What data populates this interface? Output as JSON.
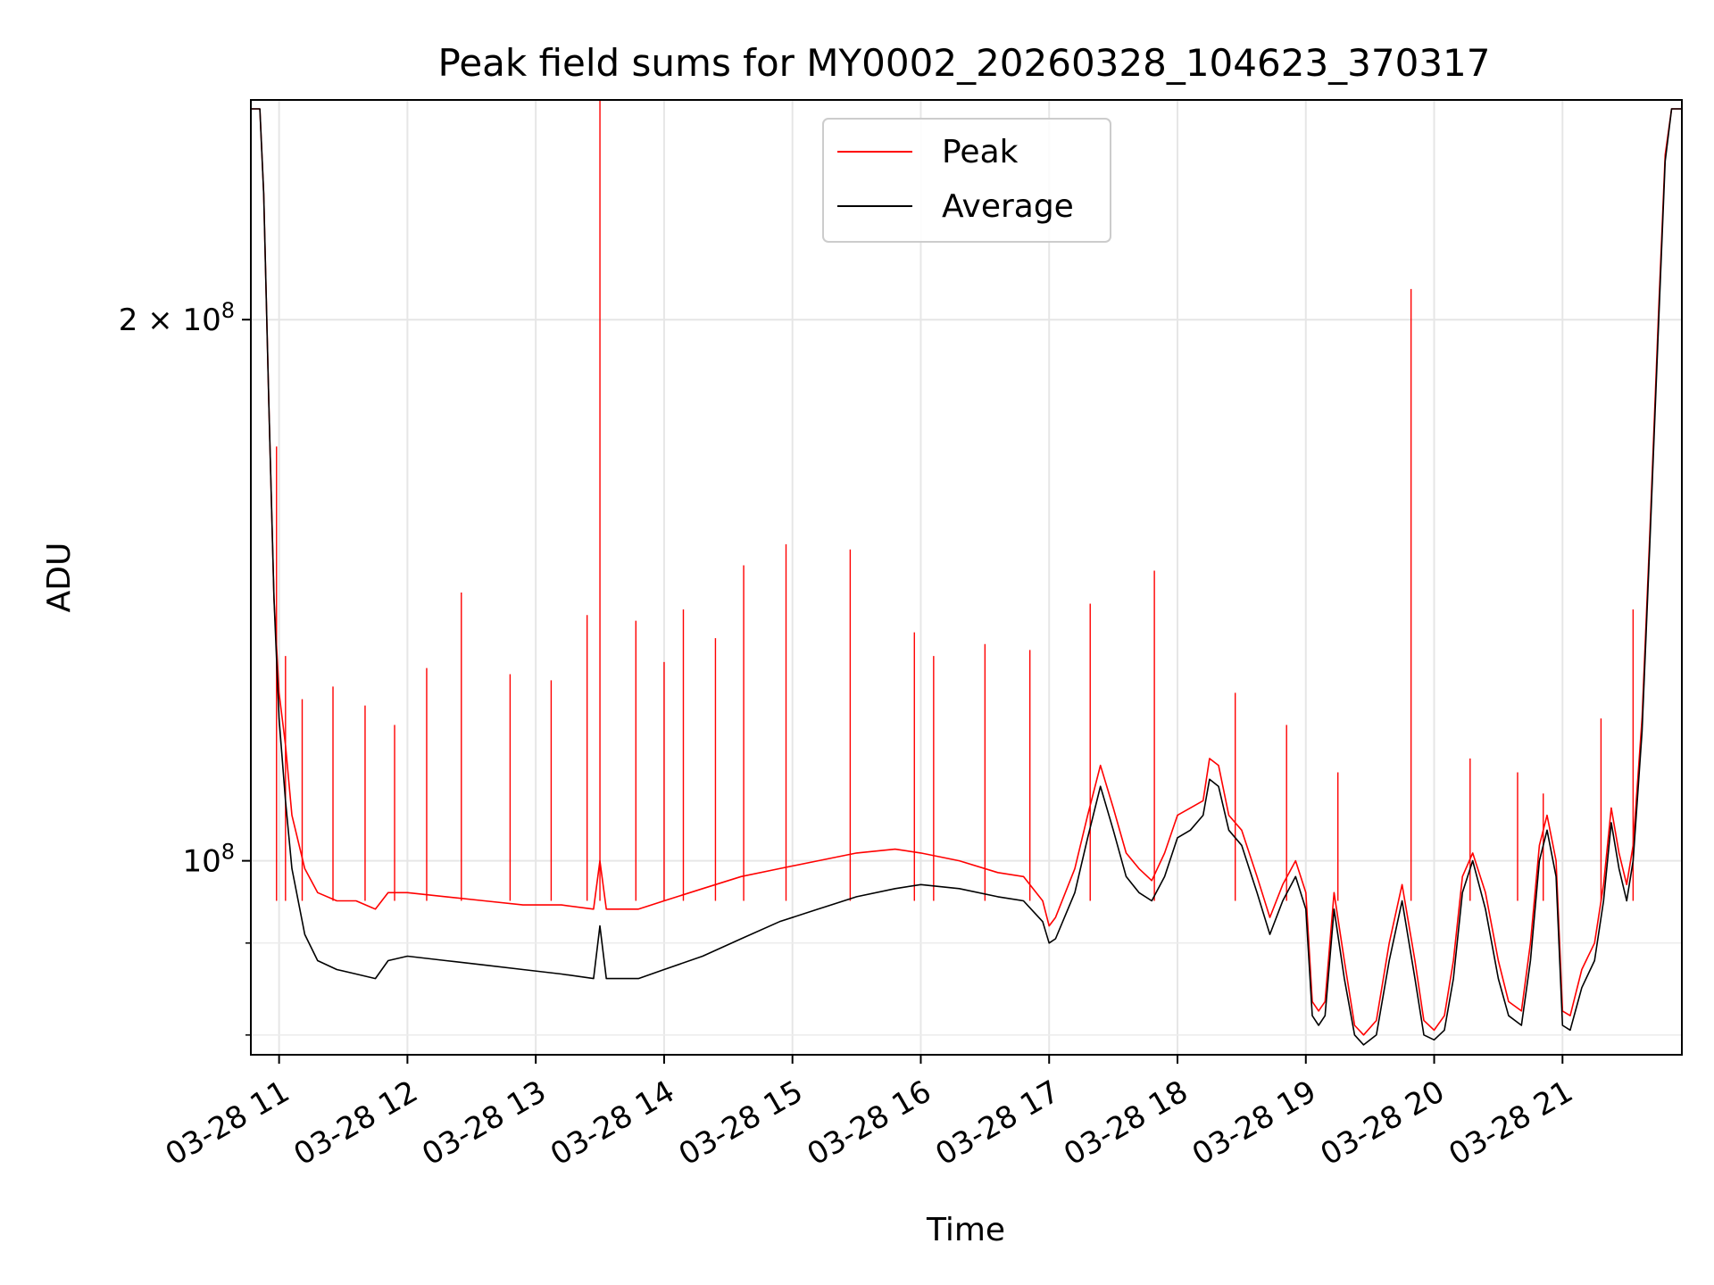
{
  "chart_data": {
    "type": "line",
    "title": "Peak field sums for MY0002_20260328_104623_370317",
    "xlabel": "Time",
    "ylabel": "ADU",
    "x_unit": "hour of 2026-03-28",
    "xlim": [
      10.78,
      21.93
    ],
    "ylim": [
      78000000,
      265000000
    ],
    "y_scale": "log",
    "grid": true,
    "legend": {
      "placement": "upper center"
    },
    "x_ticks": [
      {
        "x": 11,
        "label": "03-28 11"
      },
      {
        "x": 12,
        "label": "03-28 12"
      },
      {
        "x": 13,
        "label": "03-28 13"
      },
      {
        "x": 14,
        "label": "03-28 14"
      },
      {
        "x": 15,
        "label": "03-28 15"
      },
      {
        "x": 16,
        "label": "03-28 16"
      },
      {
        "x": 17,
        "label": "03-28 17"
      },
      {
        "x": 18,
        "label": "03-28 18"
      },
      {
        "x": 19,
        "label": "03-28 19"
      },
      {
        "x": 20,
        "label": "03-28 20"
      },
      {
        "x": 21,
        "label": "03-28 21"
      }
    ],
    "y_ticks_major": [
      {
        "y": 100000000,
        "base": "10",
        "exp": "8",
        "coef": ""
      },
      {
        "y": 200000000,
        "base": "10",
        "exp": "8",
        "coef": "2 × "
      }
    ],
    "y_ticks_minor": [
      80000000,
      90000000
    ],
    "series": [
      {
        "name": "Average",
        "color": "#000000",
        "points": [
          [
            10.78,
            262000000
          ],
          [
            10.85,
            262000000
          ],
          [
            10.88,
            235000000
          ],
          [
            10.92,
            180000000
          ],
          [
            10.96,
            140000000
          ],
          [
            11.0,
            120000000
          ],
          [
            11.05,
            108000000
          ],
          [
            11.1,
            99000000
          ],
          [
            11.2,
            91000000
          ],
          [
            11.3,
            88000000
          ],
          [
            11.45,
            87000000
          ],
          [
            11.6,
            86500000
          ],
          [
            11.75,
            86000000
          ],
          [
            11.85,
            88000000
          ],
          [
            12.0,
            88500000
          ],
          [
            12.3,
            88000000
          ],
          [
            12.6,
            87500000
          ],
          [
            12.9,
            87000000
          ],
          [
            13.2,
            86500000
          ],
          [
            13.45,
            86000000
          ],
          [
            13.5,
            92000000
          ],
          [
            13.55,
            86000000
          ],
          [
            13.8,
            86000000
          ],
          [
            14.0,
            87000000
          ],
          [
            14.3,
            88500000
          ],
          [
            14.6,
            90500000
          ],
          [
            14.9,
            92500000
          ],
          [
            15.2,
            94000000
          ],
          [
            15.5,
            95500000
          ],
          [
            15.8,
            96500000
          ],
          [
            16.0,
            97000000
          ],
          [
            16.3,
            96500000
          ],
          [
            16.6,
            95500000
          ],
          [
            16.8,
            95000000
          ],
          [
            16.95,
            92500000
          ],
          [
            17.0,
            90000000
          ],
          [
            17.05,
            90500000
          ],
          [
            17.2,
            96000000
          ],
          [
            17.3,
            103000000
          ],
          [
            17.4,
            110000000
          ],
          [
            17.5,
            104000000
          ],
          [
            17.6,
            98000000
          ],
          [
            17.7,
            96000000
          ],
          [
            17.8,
            95000000
          ],
          [
            17.9,
            98000000
          ],
          [
            18.0,
            103000000
          ],
          [
            18.1,
            104000000
          ],
          [
            18.2,
            106000000
          ],
          [
            18.25,
            111000000
          ],
          [
            18.32,
            110000000
          ],
          [
            18.4,
            104000000
          ],
          [
            18.5,
            102000000
          ],
          [
            18.62,
            96000000
          ],
          [
            18.72,
            91000000
          ],
          [
            18.82,
            95000000
          ],
          [
            18.92,
            98000000
          ],
          [
            19.0,
            94000000
          ],
          [
            19.05,
            82000000
          ],
          [
            19.1,
            81000000
          ],
          [
            19.15,
            82000000
          ],
          [
            19.22,
            94000000
          ],
          [
            19.3,
            86000000
          ],
          [
            19.38,
            80000000
          ],
          [
            19.45,
            79000000
          ],
          [
            19.55,
            80000000
          ],
          [
            19.65,
            88000000
          ],
          [
            19.75,
            95000000
          ],
          [
            19.85,
            86000000
          ],
          [
            19.92,
            80000000
          ],
          [
            20.0,
            79500000
          ],
          [
            20.08,
            80500000
          ],
          [
            20.15,
            86000000
          ],
          [
            20.22,
            96000000
          ],
          [
            20.3,
            100000000
          ],
          [
            20.4,
            94000000
          ],
          [
            20.5,
            86000000
          ],
          [
            20.58,
            82000000
          ],
          [
            20.68,
            81000000
          ],
          [
            20.75,
            88000000
          ],
          [
            20.82,
            100000000
          ],
          [
            20.88,
            104000000
          ],
          [
            20.95,
            98000000
          ],
          [
            21.0,
            81000000
          ],
          [
            21.06,
            80500000
          ],
          [
            21.15,
            85000000
          ],
          [
            21.25,
            88000000
          ],
          [
            21.32,
            95000000
          ],
          [
            21.38,
            105000000
          ],
          [
            21.44,
            99000000
          ],
          [
            21.5,
            95000000
          ],
          [
            21.55,
            100000000
          ],
          [
            21.62,
            118000000
          ],
          [
            21.68,
            150000000
          ],
          [
            21.75,
            200000000
          ],
          [
            21.8,
            245000000
          ],
          [
            21.85,
            262000000
          ],
          [
            21.93,
            262000000
          ]
        ]
      },
      {
        "name": "Peak",
        "color": "#ff0000",
        "points": [
          [
            10.78,
            262000000
          ],
          [
            10.85,
            262000000
          ],
          [
            10.88,
            235000000
          ],
          [
            10.92,
            180000000
          ],
          [
            10.96,
            140000000
          ],
          [
            11.0,
            124000000
          ],
          [
            11.05,
            116000000
          ],
          [
            11.1,
            106000000
          ],
          [
            11.2,
            99000000
          ],
          [
            11.3,
            96000000
          ],
          [
            11.45,
            95000000
          ],
          [
            11.6,
            95000000
          ],
          [
            11.75,
            94000000
          ],
          [
            11.85,
            96000000
          ],
          [
            12.0,
            96000000
          ],
          [
            12.3,
            95500000
          ],
          [
            12.6,
            95000000
          ],
          [
            12.9,
            94500000
          ],
          [
            13.2,
            94500000
          ],
          [
            13.45,
            94000000
          ],
          [
            13.5,
            100000000
          ],
          [
            13.55,
            94000000
          ],
          [
            13.8,
            94000000
          ],
          [
            14.0,
            95000000
          ],
          [
            14.3,
            96500000
          ],
          [
            14.6,
            98000000
          ],
          [
            14.9,
            99000000
          ],
          [
            15.2,
            100000000
          ],
          [
            15.5,
            101000000
          ],
          [
            15.8,
            101500000
          ],
          [
            16.0,
            101000000
          ],
          [
            16.3,
            100000000
          ],
          [
            16.6,
            98500000
          ],
          [
            16.8,
            98000000
          ],
          [
            16.95,
            95000000
          ],
          [
            17.0,
            92000000
          ],
          [
            17.05,
            93000000
          ],
          [
            17.2,
            99000000
          ],
          [
            17.3,
            106000000
          ],
          [
            17.4,
            113000000
          ],
          [
            17.5,
            107000000
          ],
          [
            17.6,
            101000000
          ],
          [
            17.7,
            99000000
          ],
          [
            17.8,
            97500000
          ],
          [
            17.9,
            101000000
          ],
          [
            18.0,
            106000000
          ],
          [
            18.1,
            107000000
          ],
          [
            18.2,
            108000000
          ],
          [
            18.25,
            114000000
          ],
          [
            18.32,
            113000000
          ],
          [
            18.4,
            106000000
          ],
          [
            18.5,
            104000000
          ],
          [
            18.62,
            98000000
          ],
          [
            18.72,
            93000000
          ],
          [
            18.82,
            97000000
          ],
          [
            18.92,
            100000000
          ],
          [
            19.0,
            96000000
          ],
          [
            19.05,
            83500000
          ],
          [
            19.1,
            82500000
          ],
          [
            19.15,
            83500000
          ],
          [
            19.22,
            96000000
          ],
          [
            19.3,
            88000000
          ],
          [
            19.38,
            81000000
          ],
          [
            19.45,
            80000000
          ],
          [
            19.55,
            81500000
          ],
          [
            19.65,
            90000000
          ],
          [
            19.75,
            97000000
          ],
          [
            19.85,
            88000000
          ],
          [
            19.92,
            81500000
          ],
          [
            20.0,
            80500000
          ],
          [
            20.08,
            82000000
          ],
          [
            20.15,
            88000000
          ],
          [
            20.22,
            98000000
          ],
          [
            20.3,
            101000000
          ],
          [
            20.4,
            96000000
          ],
          [
            20.5,
            88000000
          ],
          [
            20.58,
            83500000
          ],
          [
            20.68,
            82500000
          ],
          [
            20.75,
            90000000
          ],
          [
            20.82,
            102000000
          ],
          [
            20.88,
            106000000
          ],
          [
            20.95,
            100000000
          ],
          [
            21.0,
            82500000
          ],
          [
            21.06,
            82000000
          ],
          [
            21.15,
            87000000
          ],
          [
            21.25,
            90000000
          ],
          [
            21.32,
            97000000
          ],
          [
            21.38,
            107000000
          ],
          [
            21.44,
            101000000
          ],
          [
            21.5,
            97000000
          ],
          [
            21.55,
            102000000
          ],
          [
            21.62,
            120000000
          ],
          [
            21.68,
            152000000
          ],
          [
            21.75,
            203000000
          ],
          [
            21.8,
            247000000
          ],
          [
            21.85,
            262000000
          ],
          [
            21.93,
            262000000
          ]
        ],
        "spikes": [
          [
            10.98,
            170000000
          ],
          [
            11.05,
            130000000
          ],
          [
            11.18,
            123000000
          ],
          [
            11.42,
            125000000
          ],
          [
            11.67,
            122000000
          ],
          [
            11.9,
            119000000
          ],
          [
            12.15,
            128000000
          ],
          [
            12.42,
            141000000
          ],
          [
            12.8,
            127000000
          ],
          [
            13.12,
            126000000
          ],
          [
            13.4,
            137000000
          ],
          [
            13.5,
            270000000
          ],
          [
            13.78,
            136000000
          ],
          [
            14.0,
            129000000
          ],
          [
            14.15,
            138000000
          ],
          [
            14.4,
            133000000
          ],
          [
            14.62,
            146000000
          ],
          [
            14.95,
            150000000
          ],
          [
            15.45,
            149000000
          ],
          [
            15.95,
            134000000
          ],
          [
            16.1,
            130000000
          ],
          [
            16.5,
            132000000
          ],
          [
            16.85,
            131000000
          ],
          [
            17.32,
            139000000
          ],
          [
            17.82,
            145000000
          ],
          [
            18.45,
            124000000
          ],
          [
            18.85,
            119000000
          ],
          [
            19.25,
            112000000
          ],
          [
            19.82,
            208000000
          ],
          [
            20.28,
            114000000
          ],
          [
            20.65,
            112000000
          ],
          [
            20.85,
            109000000
          ],
          [
            21.3,
            120000000
          ],
          [
            21.55,
            138000000
          ]
        ]
      }
    ]
  }
}
